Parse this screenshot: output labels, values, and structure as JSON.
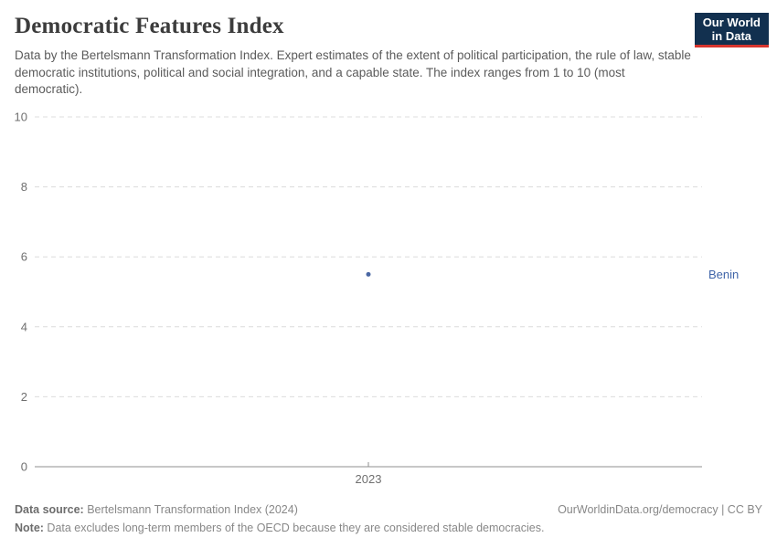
{
  "header": {
    "title": "Democratic Features Index",
    "subtitle": "Data by the Bertelsmann Transformation Index. Expert estimates of the extent of political participation, the rule of law, stable democratic institutions, political and social integration, and a capable state. The index ranges from 1 to 10 (most democratic).",
    "logo": {
      "line1": "Our World",
      "line2": "in Data",
      "bg_color": "#12304f",
      "bar_color": "#d7352e"
    }
  },
  "chart_data": {
    "type": "scatter",
    "title": "Democratic Features Index",
    "xlabel": "",
    "ylabel": "",
    "x": [
      2023
    ],
    "series": [
      {
        "name": "Benin",
        "values": [
          5.5
        ]
      }
    ],
    "entity_label": "Benin",
    "ylim": [
      0,
      10
    ],
    "y_ticks": [
      0,
      2,
      4,
      6,
      8,
      10
    ],
    "x_ticks": [
      "2023"
    ],
    "grid": true,
    "legend_position": "right-of-point",
    "point_color": "#4a67a3",
    "label_color": "#3f64a8",
    "gridline_color": "#dcdcdc",
    "axis_color": "#8f8f8f",
    "tick_label_color": "#6f6f6f"
  },
  "footer": {
    "source_label": "Data source:",
    "source_text": " Bertelsmann Transformation Index (2024)",
    "link_text": "OurWorldinData.org/democracy | CC BY",
    "note_label": "Note:",
    "note_text": " Data excludes long-term members of the OECD because they are considered stable democracies."
  }
}
